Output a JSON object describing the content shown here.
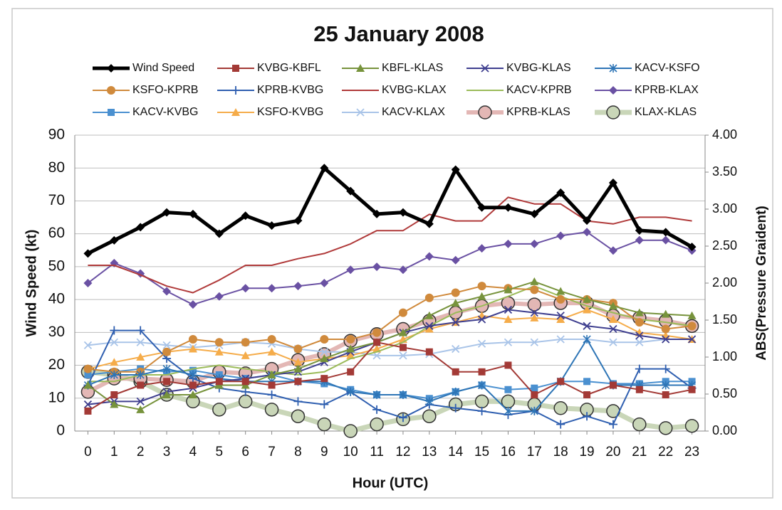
{
  "chart_data": {
    "type": "line",
    "title": "25 January 2008",
    "x_label": "Hour (UTC)",
    "y_label": "Wind Speed (kt)",
    "y2_label": "ABS(Pressure Graident)",
    "x": [
      0,
      1,
      2,
      3,
      4,
      5,
      6,
      7,
      8,
      9,
      10,
      11,
      12,
      13,
      14,
      15,
      16,
      17,
      18,
      19,
      20,
      21,
      22,
      23
    ],
    "xlim": [
      -0.5,
      23.5
    ],
    "xticks": [
      0,
      1,
      2,
      3,
      4,
      5,
      6,
      7,
      8,
      9,
      10,
      11,
      12,
      13,
      14,
      15,
      16,
      17,
      18,
      19,
      20,
      21,
      22,
      23
    ],
    "ylim": [
      0,
      90
    ],
    "yticks": [
      0,
      10,
      20,
      30,
      40,
      50,
      60,
      70,
      80,
      90
    ],
    "y2lim": [
      0,
      4
    ],
    "y2ticks": [
      {
        "value": 0,
        "label": "0.00"
      },
      {
        "value": 0.5,
        "label": "0.50"
      },
      {
        "value": 1,
        "label": "1.00"
      },
      {
        "value": 1.5,
        "label": "1.50"
      },
      {
        "value": 2,
        "label": "2.00"
      },
      {
        "value": 2.5,
        "label": "2.50"
      },
      {
        "value": 3,
        "label": "3.00"
      },
      {
        "value": 3.5,
        "label": "3.50"
      },
      {
        "value": 4,
        "label": "4.00"
      }
    ],
    "grid": true,
    "series": [
      {
        "name": "Wind Speed",
        "color": "#000000",
        "marker": "diamond",
        "linewidth": 5,
        "values": [
          54,
          58,
          62,
          66.5,
          66,
          60,
          65.5,
          62.5,
          64,
          80,
          73,
          66,
          66.5,
          63,
          79.5,
          68,
          68,
          66,
          72.5,
          64,
          75.5,
          61,
          60.5,
          56
        ]
      },
      {
        "name": "KVBG-KBFL",
        "color": "#a33a36",
        "marker": "square",
        "linewidth": 2,
        "axis": "y2",
        "values": [
          0.27,
          0.49,
          0.62,
          0.67,
          0.62,
          0.67,
          0.67,
          0.62,
          0.67,
          0.71,
          0.8,
          1.2,
          1.13,
          1.07,
          0.8,
          0.8,
          0.89,
          0.49,
          0.67,
          0.49,
          0.62,
          0.56,
          0.49,
          0.56
        ]
      },
      {
        "name": "KBFL-KLAS",
        "color": "#77933c",
        "marker": "triangle",
        "linewidth": 2,
        "axis": "y2",
        "values": [
          0.62,
          0.36,
          0.29,
          0.49,
          0.49,
          0.62,
          0.62,
          0.76,
          0.84,
          0.98,
          1.11,
          1.2,
          1.33,
          1.56,
          1.73,
          1.82,
          1.91,
          2.02,
          1.89,
          1.78,
          1.69,
          1.6,
          1.58,
          1.56
        ]
      },
      {
        "name": "KVBG-KLAS",
        "color": "#3f3f8f",
        "marker": "x",
        "linewidth": 2,
        "axis": "y2",
        "values": [
          0.36,
          0.4,
          0.4,
          0.53,
          0.58,
          0.67,
          0.71,
          0.76,
          0.8,
          0.93,
          1.07,
          1.2,
          1.33,
          1.42,
          1.47,
          1.51,
          1.64,
          1.6,
          1.56,
          1.42,
          1.38,
          1.29,
          1.24,
          1.24
        ]
      },
      {
        "name": "KACV-KSFO",
        "color": "#2e75b6",
        "marker": "asterisk",
        "linewidth": 2,
        "axis": "y2",
        "values": [
          0.62,
          0.76,
          0.76,
          0.84,
          0.76,
          0.71,
          0.67,
          0.67,
          0.67,
          0.67,
          0.53,
          0.49,
          0.49,
          0.4,
          0.53,
          0.62,
          0.27,
          0.27,
          0.67,
          1.24,
          0.62,
          0.62,
          0.62,
          0.62
        ]
      },
      {
        "name": "KSFO-KPRB",
        "color": "#d08a3c",
        "marker": "circle",
        "linewidth": 2,
        "axis": "y2",
        "values": [
          0.84,
          0.8,
          0.8,
          1.07,
          1.24,
          1.2,
          1.2,
          1.24,
          1.11,
          1.24,
          1.24,
          1.33,
          1.6,
          1.8,
          1.87,
          1.96,
          1.93,
          1.91,
          1.78,
          1.78,
          1.73,
          1.47,
          1.38,
          1.42
        ]
      },
      {
        "name": "KPRB-KVBG",
        "color": "#2f5fb0",
        "marker": "plus",
        "linewidth": 2,
        "axis": "y2",
        "values": [
          0.62,
          1.36,
          1.36,
          0.98,
          0.71,
          0.58,
          0.53,
          0.49,
          0.4,
          0.36,
          0.53,
          0.29,
          0.18,
          0.36,
          0.31,
          0.27,
          0.22,
          0.27,
          0.09,
          0.2,
          0.09,
          0.84,
          0.84,
          0.58
        ]
      },
      {
        "name": "KVBG-KLAX",
        "color": "#b03a3a",
        "marker": "none",
        "linewidth": 2,
        "axis": "y2",
        "values": [
          2.24,
          2.24,
          2.11,
          1.96,
          1.87,
          2.04,
          2.24,
          2.24,
          2.33,
          2.4,
          2.53,
          2.71,
          2.71,
          2.93,
          2.84,
          2.84,
          3.16,
          3.07,
          3.07,
          2.84,
          2.8,
          2.89,
          2.89,
          2.84
        ]
      },
      {
        "name": "KACV-KPRB",
        "color": "#9bbb59",
        "marker": "none",
        "linewidth": 2,
        "axis": "y2",
        "values": [
          0.67,
          0.67,
          0.76,
          0.76,
          0.84,
          0.89,
          0.84,
          0.8,
          0.76,
          0.8,
          0.98,
          1.07,
          1.2,
          1.42,
          1.6,
          1.69,
          1.82,
          1.96,
          1.82,
          1.69,
          1.6,
          1.51,
          1.47,
          1.42
        ]
      },
      {
        "name": "KPRB-KLAX",
        "color": "#6a51a3",
        "marker": "diamond",
        "linewidth": 2,
        "axis": "y2",
        "values": [
          2.0,
          2.27,
          2.13,
          1.89,
          1.71,
          1.82,
          1.93,
          1.93,
          1.96,
          2.0,
          2.18,
          2.22,
          2.18,
          2.36,
          2.31,
          2.47,
          2.53,
          2.53,
          2.64,
          2.69,
          2.44,
          2.58,
          2.58,
          2.44
        ]
      },
      {
        "name": "KACV-KVBG",
        "color": "#4a90d0",
        "marker": "square",
        "linewidth": 2,
        "axis": "y2",
        "values": [
          0.76,
          0.8,
          0.84,
          0.8,
          0.82,
          0.76,
          0.71,
          0.76,
          0.67,
          0.64,
          0.56,
          0.49,
          0.49,
          0.44,
          0.53,
          0.62,
          0.56,
          0.58,
          0.67,
          0.67,
          0.64,
          0.64,
          0.67,
          0.67
        ]
      },
      {
        "name": "KSFO-KVBG",
        "color": "#f5ac4a",
        "marker": "triangle",
        "linewidth": 2,
        "axis": "y2",
        "values": [
          0.84,
          0.93,
          1.0,
          1.07,
          1.11,
          1.07,
          1.02,
          1.07,
          0.93,
          0.98,
          1.02,
          1.11,
          1.24,
          1.38,
          1.47,
          1.56,
          1.51,
          1.53,
          1.51,
          1.64,
          1.51,
          1.33,
          1.29,
          1.24
        ]
      },
      {
        "name": "KACV-KLAX",
        "color": "#a9c4e8",
        "marker": "x",
        "linewidth": 2,
        "axis": "y2",
        "values": [
          1.16,
          1.2,
          1.2,
          1.16,
          1.13,
          1.16,
          1.2,
          1.18,
          1.11,
          1.07,
          1.07,
          1.02,
          1.02,
          1.04,
          1.11,
          1.18,
          1.2,
          1.2,
          1.24,
          1.24,
          1.2,
          1.2,
          1.24,
          1.24
        ]
      },
      {
        "name": "KPRB-KLAS",
        "color": "#e3b7b5",
        "marker": "bigcircle",
        "linewidth": 6,
        "axis": "y2",
        "values": [
          0.53,
          0.71,
          0.71,
          0.69,
          0.67,
          0.8,
          0.78,
          0.84,
          0.96,
          1.04,
          1.22,
          1.31,
          1.38,
          1.49,
          1.6,
          1.69,
          1.73,
          1.71,
          1.73,
          1.73,
          1.56,
          1.53,
          1.49,
          1.42
        ]
      },
      {
        "name": "KLAX-KLAS",
        "color": "#c9d6b8",
        "marker": "bigcircle",
        "linewidth": 7,
        "axis": "y2",
        "values": [
          0.8,
          0.76,
          0.67,
          0.49,
          0.4,
          0.29,
          0.4,
          0.29,
          0.2,
          0.09,
          0.0,
          0.09,
          0.16,
          0.2,
          0.36,
          0.4,
          0.4,
          0.36,
          0.31,
          0.29,
          0.27,
          0.09,
          0.04,
          0.07
        ]
      }
    ]
  }
}
